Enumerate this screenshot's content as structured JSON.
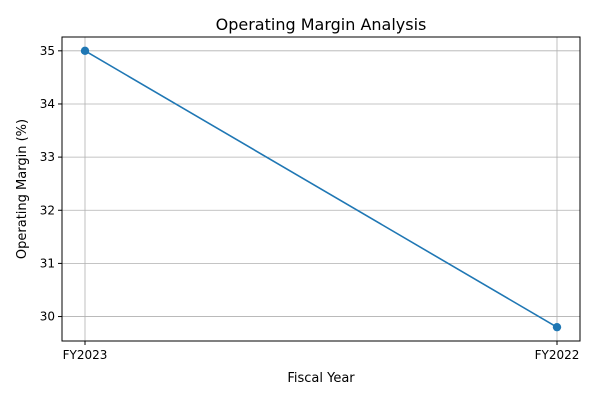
{
  "chart_data": {
    "type": "line",
    "title": "Operating Margin Analysis",
    "xlabel": "Fiscal Year",
    "ylabel": "Operating Margin (%)",
    "categories": [
      "FY2023",
      "FY2022"
    ],
    "series": [
      {
        "values": [
          35.0,
          29.8
        ],
        "color": "#1f77b4",
        "marker": "circle"
      }
    ],
    "ylim": [
      29.54,
      35.26
    ],
    "yticks": [
      30,
      31,
      32,
      33,
      34,
      35
    ],
    "grid": true
  }
}
